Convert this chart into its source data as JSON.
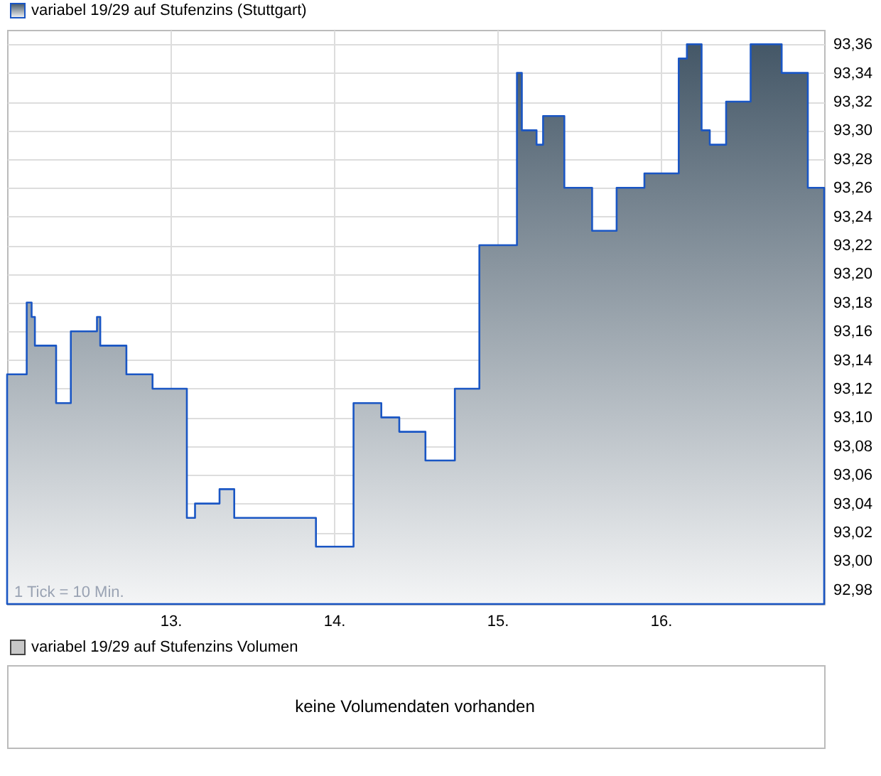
{
  "chart_data": [
    {
      "type": "area",
      "x": [
        12.0,
        12.12,
        12.15,
        12.17,
        12.3,
        12.39,
        12.55,
        12.57,
        12.73,
        12.89,
        13.1,
        13.15,
        13.3,
        13.39,
        13.89,
        14.12,
        14.29,
        14.4,
        14.56,
        14.74,
        14.89,
        15.12,
        15.15,
        15.24,
        15.28,
        15.41,
        15.58,
        15.73,
        15.9,
        16.11,
        16.16,
        16.25,
        16.3,
        16.4,
        16.55,
        16.74,
        16.9,
        17.0
      ],
      "series": [
        {
          "name": "variabel 19/29 auf Stufenzins (Stuttgart)",
          "color": "#1a56c4",
          "values": [
            93.13,
            93.18,
            93.17,
            93.15,
            93.11,
            93.16,
            93.17,
            93.15,
            93.13,
            93.12,
            93.03,
            93.04,
            93.05,
            93.03,
            93.01,
            93.11,
            93.1,
            93.09,
            93.07,
            93.12,
            93.22,
            93.34,
            93.3,
            93.29,
            93.31,
            93.26,
            93.23,
            93.26,
            93.27,
            93.35,
            93.36,
            93.3,
            93.29,
            93.32,
            93.36,
            93.34,
            93.26,
            93.26
          ]
        }
      ],
      "xlim": [
        12,
        17
      ],
      "xticks": [
        {
          "value": 13,
          "label": "13."
        },
        {
          "value": 14,
          "label": "14."
        },
        {
          "value": 15,
          "label": "15."
        },
        {
          "value": 16,
          "label": "16."
        }
      ],
      "ylim": [
        92.97,
        93.37
      ],
      "yticks": [
        {
          "value": 92.98,
          "label": "92,98"
        },
        {
          "value": 93.0,
          "label": "93,00"
        },
        {
          "value": 93.02,
          "label": "93,02"
        },
        {
          "value": 93.04,
          "label": "93,04"
        },
        {
          "value": 93.06,
          "label": "93,06"
        },
        {
          "value": 93.08,
          "label": "93,08"
        },
        {
          "value": 93.1,
          "label": "93,10"
        },
        {
          "value": 93.12,
          "label": "93,12"
        },
        {
          "value": 93.14,
          "label": "93,14"
        },
        {
          "value": 93.16,
          "label": "93,16"
        },
        {
          "value": 93.18,
          "label": "93,18"
        },
        {
          "value": 93.2,
          "label": "93,20"
        },
        {
          "value": 93.22,
          "label": "93,22"
        },
        {
          "value": 93.24,
          "label": "93,24"
        },
        {
          "value": 93.26,
          "label": "93,26"
        },
        {
          "value": 93.28,
          "label": "93,28"
        },
        {
          "value": 93.3,
          "label": "93,30"
        },
        {
          "value": 93.32,
          "label": "93,32"
        },
        {
          "value": 93.34,
          "label": "93,34"
        },
        {
          "value": 93.36,
          "label": "93,36"
        }
      ],
      "grid": true,
      "legend": "top left",
      "annotations": [
        "1 Tick = 10 Min."
      ]
    },
    {
      "type": "other",
      "series": [
        {
          "name": "variabel 19/29 auf Stufenzins Volumen",
          "color": "#c8c8c8"
        }
      ],
      "legend": "top left",
      "annotations": [
        "keine Volumendaten vorhanden"
      ]
    }
  ]
}
